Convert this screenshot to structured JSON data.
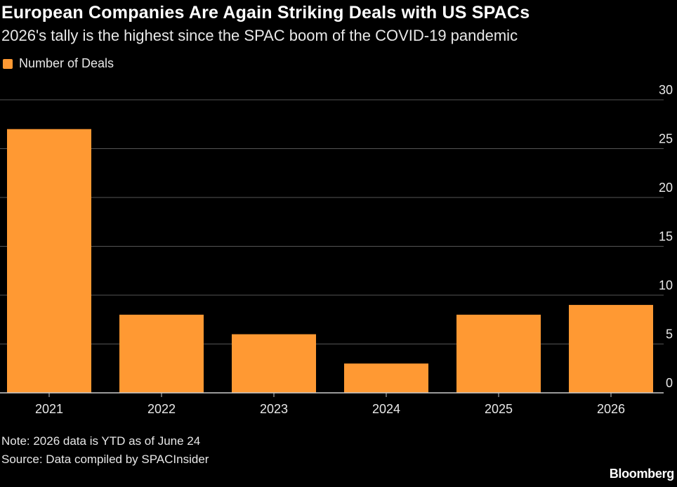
{
  "chart_data": {
    "type": "bar",
    "title": "European Companies Are Again Striking Deals with US SPACs",
    "subtitle": "2026's tally is the highest since the SPAC boom of the COVID-19 pandemic",
    "categories": [
      "2021",
      "2022",
      "2023",
      "2024",
      "2025",
      "2026"
    ],
    "series": [
      {
        "name": "Number of Deals",
        "values": [
          27,
          8,
          6,
          3,
          8,
          9
        ]
      }
    ],
    "ylim": [
      0,
      30
    ],
    "yticks": [
      0,
      5,
      10,
      15,
      20,
      25,
      30
    ],
    "y_axis_position": "right",
    "grid": true,
    "legend_position": "top-left",
    "xlabel": "",
    "ylabel": ""
  },
  "colors": {
    "background": "#000000",
    "bar": "#ff9933",
    "gridline": "#555555",
    "text": "#ffffff"
  },
  "note": "Note: 2026 data is YTD as of June 24",
  "source": "Source: Data compiled by SPACInsider",
  "brand": "Bloomberg"
}
